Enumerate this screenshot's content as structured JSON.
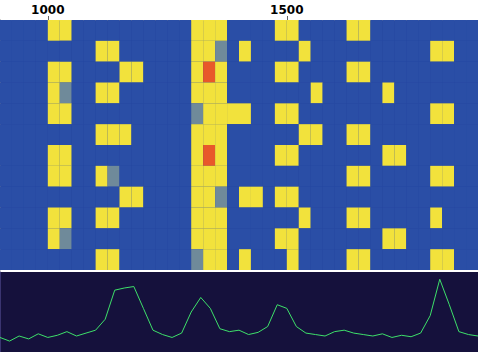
{
  "chart_data": {
    "type": "heatmap",
    "xlim": [
      900,
      1900
    ],
    "xticks": [
      1000,
      1500
    ],
    "ylim": [
      0,
      12
    ],
    "tick_labels": "x",
    "bins": [
      900,
      925,
      950,
      975,
      1000,
      1025,
      1050,
      1075,
      1100,
      1125,
      1150,
      1175,
      1200,
      1225,
      1250,
      1275,
      1300,
      1325,
      1350,
      1375,
      1400,
      1425,
      1450,
      1475,
      1500,
      1525,
      1550,
      1575,
      1600,
      1625,
      1650,
      1675,
      1700,
      1725,
      1750,
      1775,
      1800,
      1825,
      1850,
      1875,
      1900
    ],
    "color_range": [
      0,
      4
    ],
    "cells": [
      [
        1,
        1,
        1,
        1,
        3,
        3,
        1,
        1,
        1,
        1,
        1,
        1,
        1,
        1,
        1,
        1,
        3,
        3,
        3,
        1,
        1,
        1,
        1,
        3,
        3,
        1,
        1,
        1,
        1,
        3,
        3,
        1,
        1,
        1,
        1,
        1,
        1,
        1,
        1,
        1
      ],
      [
        1,
        1,
        1,
        1,
        1,
        1,
        1,
        1,
        3,
        3,
        1,
        1,
        1,
        1,
        1,
        1,
        3,
        3,
        2,
        1,
        3,
        1,
        1,
        1,
        1,
        3,
        1,
        1,
        1,
        1,
        1,
        1,
        1,
        1,
        1,
        1,
        3,
        3,
        1,
        1
      ],
      [
        1,
        1,
        1,
        1,
        3,
        3,
        1,
        1,
        1,
        1,
        3,
        3,
        1,
        1,
        1,
        1,
        3,
        4,
        3,
        1,
        1,
        1,
        1,
        3,
        3,
        1,
        1,
        1,
        1,
        3,
        3,
        1,
        1,
        1,
        1,
        1,
        1,
        1,
        1,
        1
      ],
      [
        1,
        1,
        1,
        1,
        3,
        2,
        1,
        1,
        3,
        3,
        1,
        1,
        1,
        1,
        1,
        1,
        3,
        3,
        3,
        1,
        1,
        1,
        1,
        1,
        1,
        1,
        3,
        1,
        1,
        1,
        1,
        1,
        3,
        1,
        1,
        1,
        1,
        1,
        1,
        1
      ],
      [
        1,
        1,
        1,
        1,
        3,
        3,
        1,
        1,
        1,
        1,
        1,
        1,
        1,
        1,
        1,
        1,
        2,
        3,
        3,
        3,
        3,
        1,
        1,
        3,
        3,
        1,
        1,
        1,
        1,
        1,
        1,
        1,
        1,
        1,
        1,
        1,
        3,
        3,
        1,
        1
      ],
      [
        1,
        1,
        1,
        1,
        1,
        1,
        1,
        1,
        3,
        3,
        3,
        1,
        1,
        1,
        1,
        1,
        3,
        3,
        3,
        1,
        1,
        1,
        1,
        1,
        1,
        3,
        3,
        1,
        1,
        3,
        3,
        1,
        1,
        1,
        1,
        1,
        1,
        1,
        1,
        1
      ],
      [
        1,
        1,
        1,
        1,
        3,
        3,
        1,
        1,
        1,
        1,
        1,
        1,
        1,
        1,
        1,
        1,
        3,
        4,
        3,
        1,
        1,
        1,
        1,
        3,
        3,
        1,
        1,
        1,
        1,
        1,
        1,
        1,
        3,
        3,
        1,
        1,
        1,
        1,
        1,
        1
      ],
      [
        1,
        1,
        1,
        1,
        3,
        3,
        1,
        1,
        3,
        2,
        1,
        1,
        1,
        1,
        1,
        1,
        3,
        3,
        3,
        1,
        1,
        1,
        1,
        1,
        1,
        1,
        1,
        1,
        1,
        3,
        3,
        1,
        1,
        1,
        1,
        1,
        3,
        3,
        1,
        1
      ],
      [
        1,
        1,
        1,
        1,
        1,
        1,
        1,
        1,
        1,
        1,
        3,
        3,
        1,
        1,
        1,
        1,
        3,
        3,
        2,
        1,
        3,
        3,
        1,
        3,
        3,
        1,
        1,
        1,
        1,
        1,
        1,
        1,
        1,
        1,
        1,
        1,
        1,
        1,
        1,
        1
      ],
      [
        1,
        1,
        1,
        1,
        3,
        3,
        1,
        1,
        3,
        3,
        1,
        1,
        1,
        1,
        1,
        1,
        3,
        3,
        3,
        1,
        1,
        1,
        1,
        1,
        1,
        3,
        1,
        1,
        1,
        3,
        3,
        1,
        1,
        1,
        1,
        1,
        3,
        1,
        1,
        1
      ],
      [
        1,
        1,
        1,
        1,
        3,
        2,
        1,
        1,
        1,
        1,
        1,
        1,
        1,
        1,
        1,
        1,
        3,
        3,
        3,
        1,
        1,
        1,
        1,
        3,
        3,
        1,
        1,
        1,
        1,
        1,
        1,
        1,
        3,
        3,
        1,
        1,
        1,
        1,
        1,
        1
      ],
      [
        1,
        1,
        1,
        1,
        1,
        1,
        1,
        1,
        3,
        3,
        1,
        1,
        1,
        1,
        1,
        1,
        2,
        3,
        3,
        1,
        3,
        1,
        1,
        1,
        3,
        1,
        1,
        1,
        1,
        3,
        3,
        1,
        1,
        1,
        1,
        1,
        3,
        3,
        1,
        1
      ]
    ],
    "spectrum": {
      "type": "line",
      "color": "#3ee06a",
      "ylim": [
        0,
        11
      ],
      "x": [
        900,
        920,
        940,
        960,
        980,
        1000,
        1020,
        1040,
        1060,
        1080,
        1100,
        1120,
        1140,
        1160,
        1180,
        1200,
        1220,
        1240,
        1260,
        1280,
        1300,
        1320,
        1340,
        1360,
        1380,
        1400,
        1420,
        1440,
        1460,
        1480,
        1500,
        1520,
        1540,
        1560,
        1580,
        1600,
        1620,
        1640,
        1660,
        1680,
        1700,
        1720,
        1740,
        1760,
        1780,
        1800,
        1820,
        1840,
        1860,
        1880,
        1900
      ],
      "values": [
        2.0,
        1.5,
        2.2,
        1.8,
        2.5,
        2.0,
        2.3,
        2.8,
        2.2,
        2.6,
        3.0,
        4.5,
        8.5,
        8.8,
        9.0,
        6.0,
        3.0,
        2.4,
        2.0,
        2.6,
        5.5,
        7.5,
        6.0,
        3.2,
        2.8,
        3.0,
        2.4,
        2.7,
        3.5,
        6.5,
        6.0,
        3.5,
        2.6,
        2.4,
        2.2,
        2.8,
        3.0,
        2.6,
        2.4,
        2.2,
        2.5,
        2.0,
        2.3,
        2.1,
        2.6,
        5.0,
        10.0,
        6.5,
        2.8,
        2.4,
        2.2
      ]
    }
  }
}
